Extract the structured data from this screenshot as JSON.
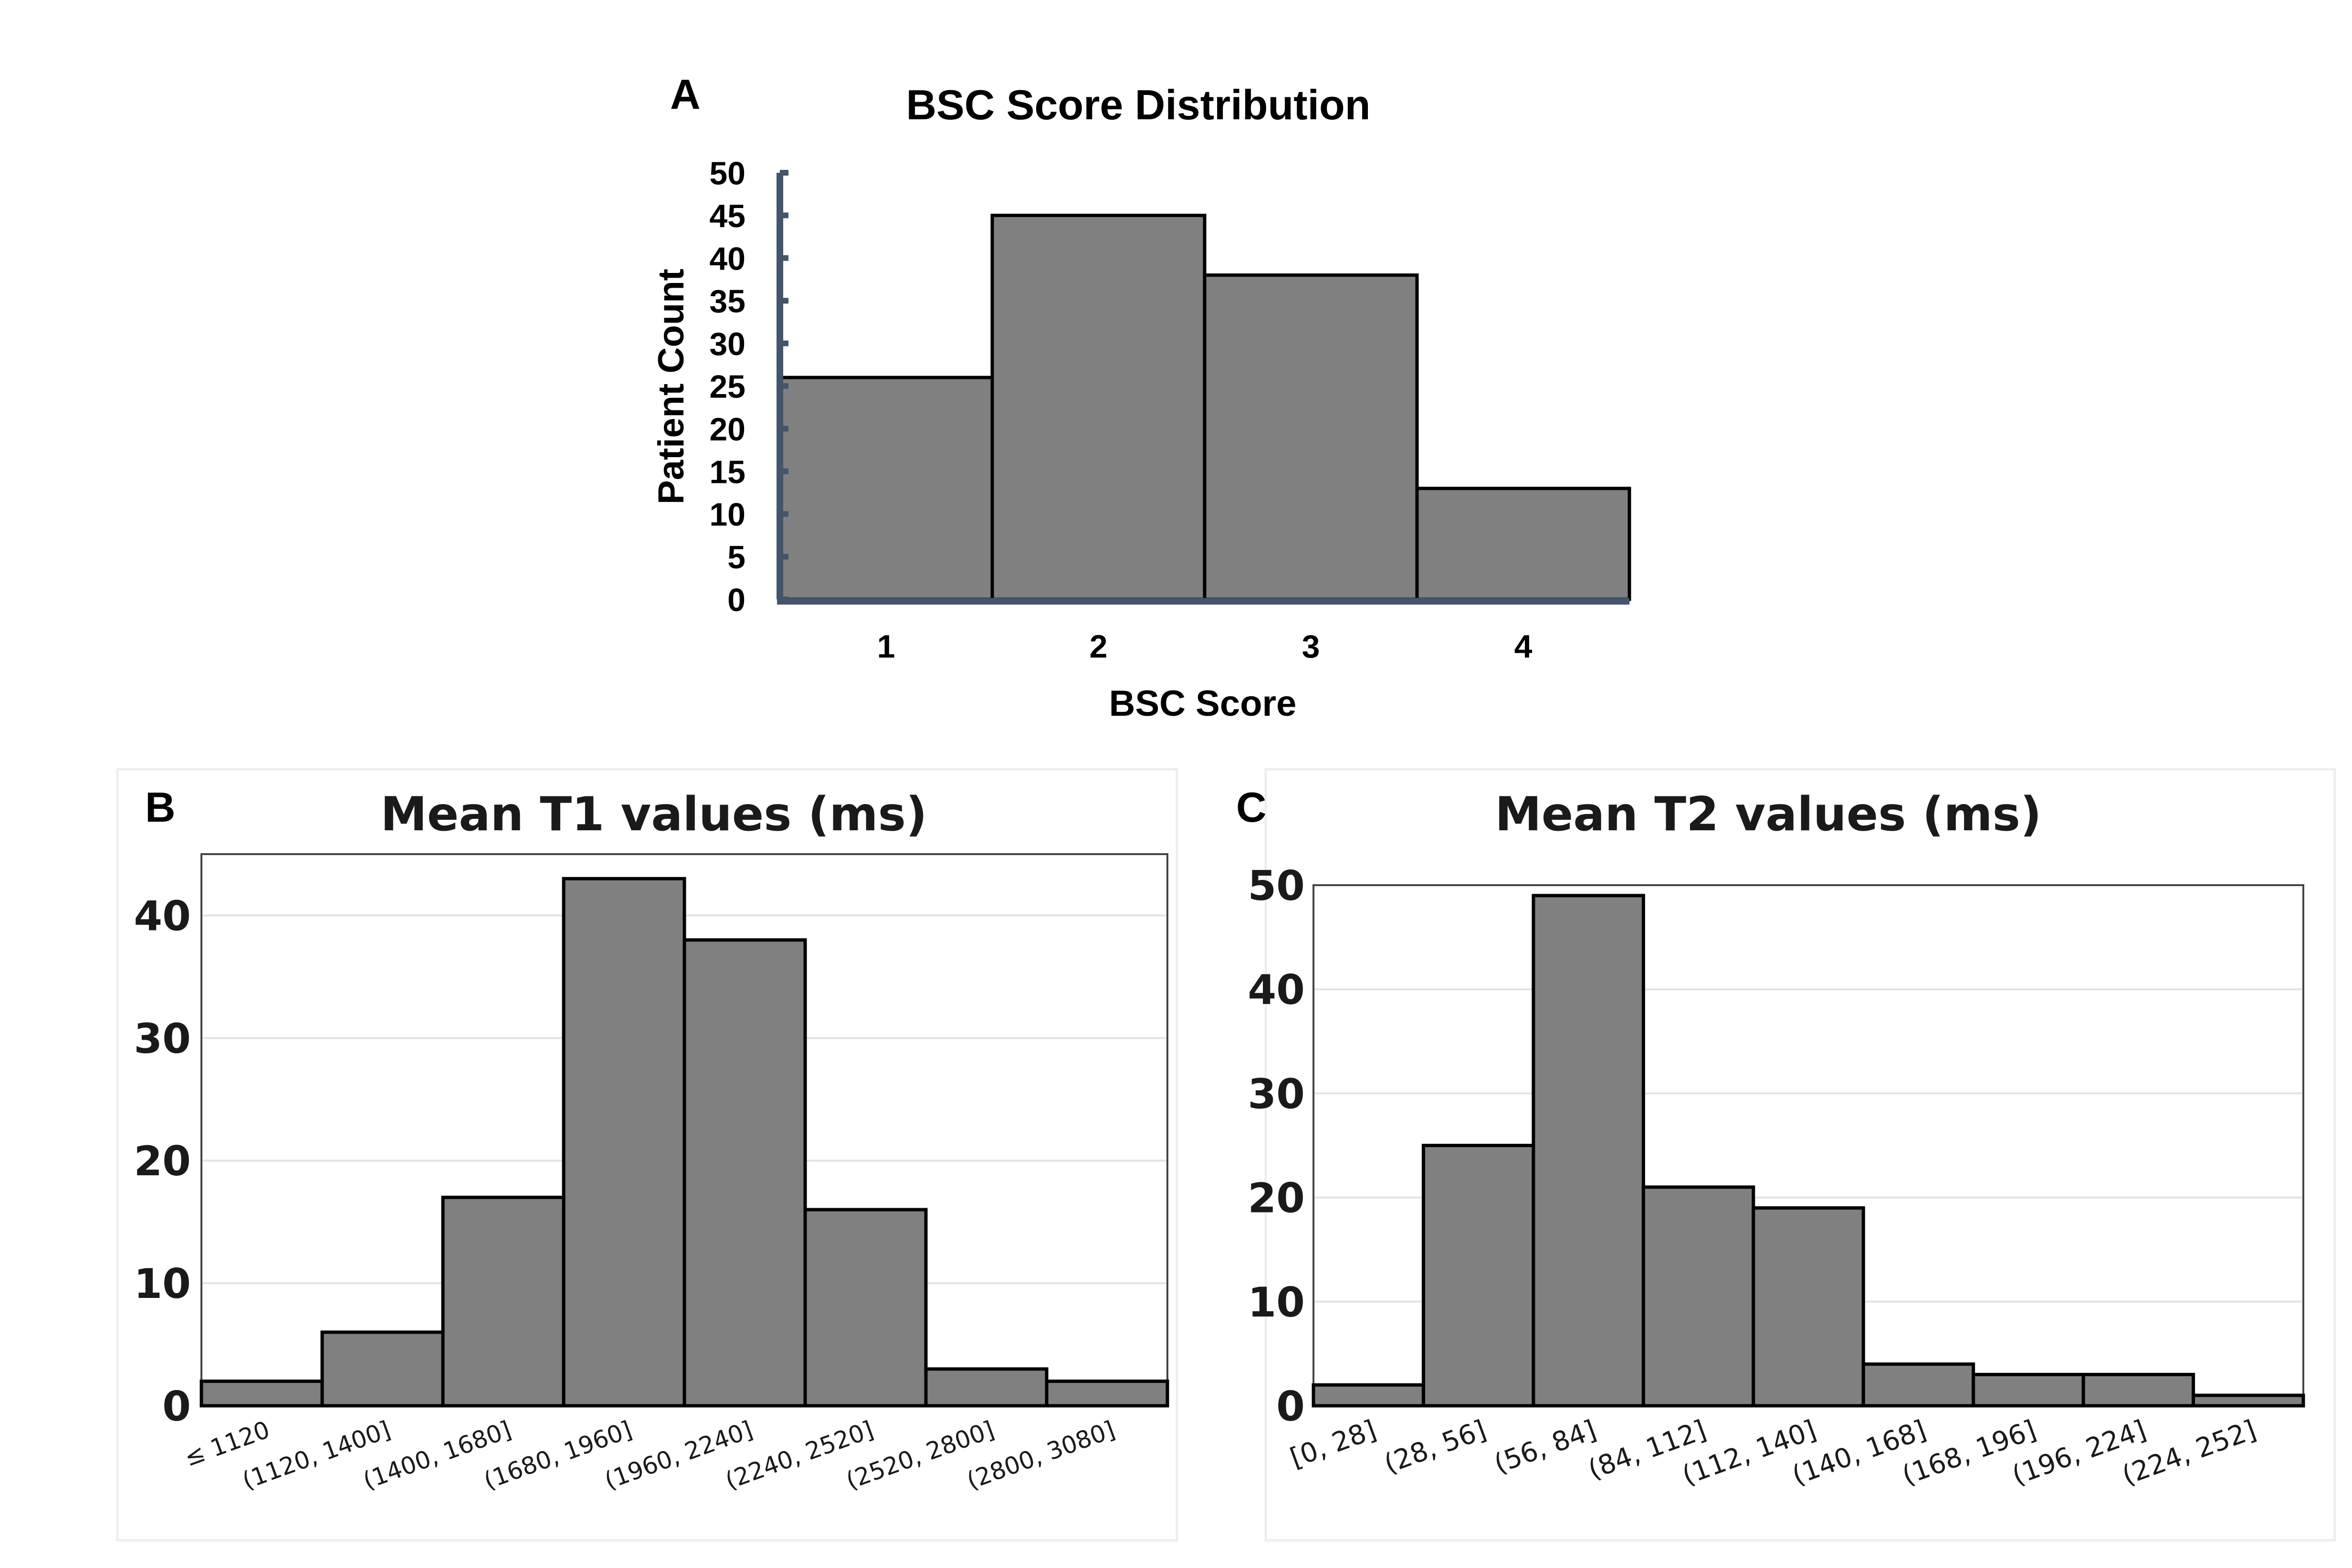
{
  "chart_data": [
    {
      "panel": "A",
      "type": "bar",
      "title": "BSC Score Distribution",
      "xlabel": "BSC Score",
      "ylabel": "Patient Count",
      "categories": [
        "1",
        "2",
        "3",
        "4"
      ],
      "values": [
        26,
        45,
        38,
        13
      ],
      "ylim": [
        0,
        50
      ],
      "yticks": [
        0,
        5,
        10,
        15,
        20,
        25,
        30,
        35,
        40,
        45,
        50
      ],
      "grid": false,
      "bar_color": "#808080",
      "axis_color": "#44546a"
    },
    {
      "panel": "B",
      "type": "bar",
      "title": "Mean T1 values (ms)",
      "xlabel": "",
      "ylabel": "",
      "categories": [
        "≤ 1120",
        "(1120, 1400]",
        "(1400, 1680]",
        "(1680, 1960]",
        "(1960, 2240]",
        "(2240, 2520]",
        "(2520, 2800]",
        "(2800, 3080]"
      ],
      "values": [
        2,
        6,
        17,
        43,
        38,
        16,
        3,
        2
      ],
      "ylim": [
        0,
        45
      ],
      "yticks": [
        0,
        10,
        20,
        30,
        40
      ],
      "grid": true,
      "bar_color": "#808080"
    },
    {
      "panel": "C",
      "type": "bar",
      "title": "Mean T2 values (ms)",
      "xlabel": "",
      "ylabel": "",
      "categories": [
        "[0, 28]",
        "(28, 56]",
        "(56, 84]",
        "(84, 112]",
        "(112, 140]",
        "(140, 168]",
        "(168, 196]",
        "(196, 224]",
        "(224, 252]"
      ],
      "values": [
        2,
        25,
        49,
        21,
        19,
        4,
        3,
        3,
        1
      ],
      "ylim": [
        0,
        50
      ],
      "yticks": [
        0,
        10,
        20,
        30,
        40,
        50
      ],
      "grid": true,
      "bar_color": "#808080"
    }
  ]
}
